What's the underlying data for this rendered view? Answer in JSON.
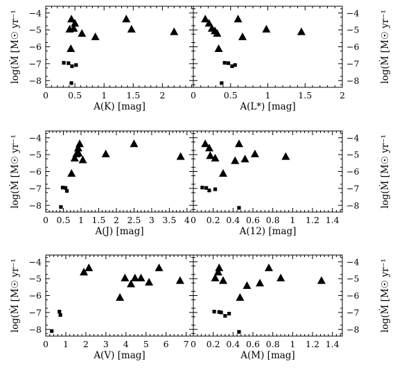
{
  "y_axis_label": "log(Ṁ [M☉ yr⁻¹",
  "chart_data": [
    {
      "type": "scatter",
      "xlabel": "A(K) [mag]",
      "ylabel": "log(Ṁ [M☉ yr⁻¹",
      "xlim": [
        0,
        2.53
      ],
      "ylim": [
        -8.4,
        -3.6
      ],
      "xticks": [
        0,
        0.5,
        1,
        1.5,
        2
      ],
      "xticklabels": [
        "0",
        "0.5",
        "1",
        "1.5",
        "2"
      ],
      "yticks": [
        -4,
        -5,
        -6,
        -7,
        -8
      ],
      "yticklabels": [
        "−4",
        "−5",
        "−6",
        "−7",
        "−8"
      ],
      "series": [
        {
          "marker": "triangle",
          "points": [
            [
              0.44,
              -4.35
            ],
            [
              0.5,
              -4.6
            ],
            [
              0.41,
              -4.95
            ],
            [
              0.48,
              -4.9
            ],
            [
              0.62,
              -5.2
            ],
            [
              0.85,
              -5.4
            ],
            [
              0.43,
              -6.1
            ],
            [
              1.38,
              -4.35
            ],
            [
              1.47,
              -4.95
            ],
            [
              2.2,
              -5.1
            ]
          ]
        },
        {
          "marker": "square",
          "points": [
            [
              0.31,
              -6.95
            ],
            [
              0.39,
              -6.97
            ],
            [
              0.45,
              -7.15
            ],
            [
              0.52,
              -7.08
            ],
            [
              0.44,
              -8.15
            ]
          ]
        }
      ]
    },
    {
      "type": "scatter",
      "xlabel": "A(L*) [mag]",
      "ylabel": "log(Ṁ [M☉ yr⁻¹",
      "xlim": [
        0,
        2
      ],
      "ylim": [
        -8.4,
        -3.6
      ],
      "xticks": [
        0,
        0.5,
        1,
        1.5,
        2
      ],
      "xticklabels": [
        "0",
        "0.5",
        "1",
        "1.5",
        "2"
      ],
      "yticks": [
        -4,
        -5,
        -6,
        -7,
        -8
      ],
      "yticklabels": [
        "−4",
        "−5",
        "−6",
        "−7",
        "−8"
      ],
      "series": [
        {
          "marker": "triangle",
          "points": [
            [
              0.16,
              -4.35
            ],
            [
              0.21,
              -4.6
            ],
            [
              0.25,
              -4.9
            ],
            [
              0.29,
              -5.05
            ],
            [
              0.32,
              -5.2
            ],
            [
              0.34,
              -6.1
            ],
            [
              0.6,
              -4.35
            ],
            [
              0.66,
              -5.4
            ],
            [
              0.98,
              -4.95
            ],
            [
              1.45,
              -5.1
            ]
          ]
        },
        {
          "marker": "square",
          "points": [
            [
              0.42,
              -6.95
            ],
            [
              0.47,
              -6.97
            ],
            [
              0.52,
              -7.15
            ],
            [
              0.56,
              -7.08
            ],
            [
              0.38,
              -8.15
            ]
          ]
        }
      ]
    },
    {
      "type": "scatter",
      "xlabel": "A(J) [mag]",
      "ylabel": "log(Ṁ [M☉ yr⁻¹",
      "xlim": [
        0,
        4.18
      ],
      "ylim": [
        -8.4,
        -3.6
      ],
      "xticks": [
        0,
        0.5,
        1,
        1.5,
        2,
        2.5,
        3,
        3.5,
        4
      ],
      "xticklabels": [
        "0",
        "0.5",
        "1",
        "1.5",
        "2",
        "2.5",
        "3",
        "3.5",
        "4"
      ],
      "yticks": [
        -4,
        -5,
        -6,
        -7,
        -8
      ],
      "yticklabels": [
        "−4",
        "−5",
        "−6",
        "−7",
        "−8"
      ],
      "series": [
        {
          "marker": "triangle",
          "points": [
            [
              0.96,
              -4.35
            ],
            [
              0.92,
              -4.6
            ],
            [
              0.87,
              -4.95
            ],
            [
              0.82,
              -5.2
            ],
            [
              1.05,
              -5.3
            ],
            [
              0.73,
              -6.1
            ],
            [
              1.7,
              -4.95
            ],
            [
              2.5,
              -4.35
            ],
            [
              3.82,
              -5.1
            ],
            [
              0.93,
              -4.9
            ]
          ]
        },
        {
          "marker": "square",
          "points": [
            [
              0.48,
              -6.95
            ],
            [
              0.56,
              -6.97
            ],
            [
              0.6,
              -7.15
            ],
            [
              0.43,
              -8.1
            ]
          ]
        }
      ]
    },
    {
      "type": "scatter",
      "xlabel": "A(12) [mag]",
      "ylabel": "log(Ṁ [M☉ yr⁻¹",
      "xlim": [
        0,
        1.5
      ],
      "ylim": [
        -8.4,
        -3.6
      ],
      "xticks": [
        0,
        0.2,
        0.4,
        0.6,
        0.8,
        1,
        1.2,
        1.4
      ],
      "xticklabels": [
        "0",
        "0.2",
        "0.4",
        "0.6",
        "0.8",
        "1",
        "1.2",
        "1.4"
      ],
      "yticks": [
        -4,
        -5,
        -6,
        -7,
        -8
      ],
      "yticklabels": [
        "−4",
        "−5",
        "−6",
        "−7",
        "−8"
      ],
      "series": [
        {
          "marker": "triangle",
          "points": [
            [
              0.12,
              -4.35
            ],
            [
              0.16,
              -4.6
            ],
            [
              0.17,
              -5.05
            ],
            [
              0.22,
              -5.2
            ],
            [
              0.3,
              -6.1
            ],
            [
              0.46,
              -4.35
            ],
            [
              0.42,
              -5.35
            ],
            [
              0.52,
              -5.25
            ],
            [
              0.62,
              -4.95
            ],
            [
              0.93,
              -5.1
            ]
          ]
        },
        {
          "marker": "square",
          "points": [
            [
              0.09,
              -6.95
            ],
            [
              0.13,
              -6.97
            ],
            [
              0.16,
              -7.12
            ],
            [
              0.22,
              -7.05
            ],
            [
              0.46,
              -8.15
            ]
          ]
        }
      ]
    },
    {
      "type": "scatter",
      "xlabel": "A(V) [mag]",
      "ylabel": "log(Ṁ [M☉ yr⁻¹",
      "xlim": [
        0,
        7.36
      ],
      "ylim": [
        -8.4,
        -3.6
      ],
      "xticks": [
        0,
        1,
        2,
        3,
        4,
        5,
        6,
        7
      ],
      "xticklabels": [
        "0",
        "1",
        "2",
        "3",
        "4",
        "5",
        "6",
        "7"
      ],
      "yticks": [
        -4,
        -5,
        -6,
        -7,
        -8
      ],
      "yticklabels": [
        "−4",
        "−5",
        "−6",
        "−7",
        "−8"
      ],
      "series": [
        {
          "marker": "triangle",
          "points": [
            [
              1.9,
              -4.6
            ],
            [
              2.15,
              -4.35
            ],
            [
              3.7,
              -6.1
            ],
            [
              3.95,
              -4.95
            ],
            [
              4.25,
              -5.3
            ],
            [
              4.45,
              -4.95
            ],
            [
              4.75,
              -4.95
            ],
            [
              5.15,
              -5.2
            ],
            [
              5.65,
              -4.35
            ],
            [
              6.7,
              -5.1
            ]
          ]
        },
        {
          "marker": "square",
          "points": [
            [
              0.68,
              -6.95
            ],
            [
              0.73,
              -7.15
            ],
            [
              0.3,
              -8.1
            ]
          ]
        }
      ]
    },
    {
      "type": "scatter",
      "xlabel": "A(M) [mag]",
      "ylabel": "log(Ṁ [M☉ yr⁻¹",
      "xlim": [
        0,
        1.5
      ],
      "ylim": [
        -8.4,
        -3.6
      ],
      "xticks": [
        0,
        0.2,
        0.4,
        0.6,
        0.8,
        1,
        1.2,
        1.4
      ],
      "xticklabels": [
        "0",
        "0.2",
        "0.4",
        "0.6",
        "0.8",
        "1",
        "1.2",
        "1.4"
      ],
      "yticks": [
        -4,
        -5,
        -6,
        -7,
        -8
      ],
      "yticklabels": [
        "−4",
        "−5",
        "−6",
        "−7",
        "−8"
      ],
      "series": [
        {
          "marker": "triangle",
          "points": [
            [
              0.22,
              -4.95
            ],
            [
              0.25,
              -4.6
            ],
            [
              0.26,
              -4.35
            ],
            [
              0.3,
              -5.1
            ],
            [
              0.47,
              -6.1
            ],
            [
              0.54,
              -5.4
            ],
            [
              0.67,
              -5.25
            ],
            [
              0.76,
              -4.35
            ],
            [
              0.88,
              -4.95
            ],
            [
              1.29,
              -5.1
            ]
          ]
        },
        {
          "marker": "square",
          "points": [
            [
              0.21,
              -6.95
            ],
            [
              0.26,
              -6.97
            ],
            [
              0.28,
              -7.0
            ],
            [
              0.32,
              -7.2
            ],
            [
              0.36,
              -7.07
            ],
            [
              0.46,
              -8.15
            ]
          ]
        }
      ]
    }
  ]
}
